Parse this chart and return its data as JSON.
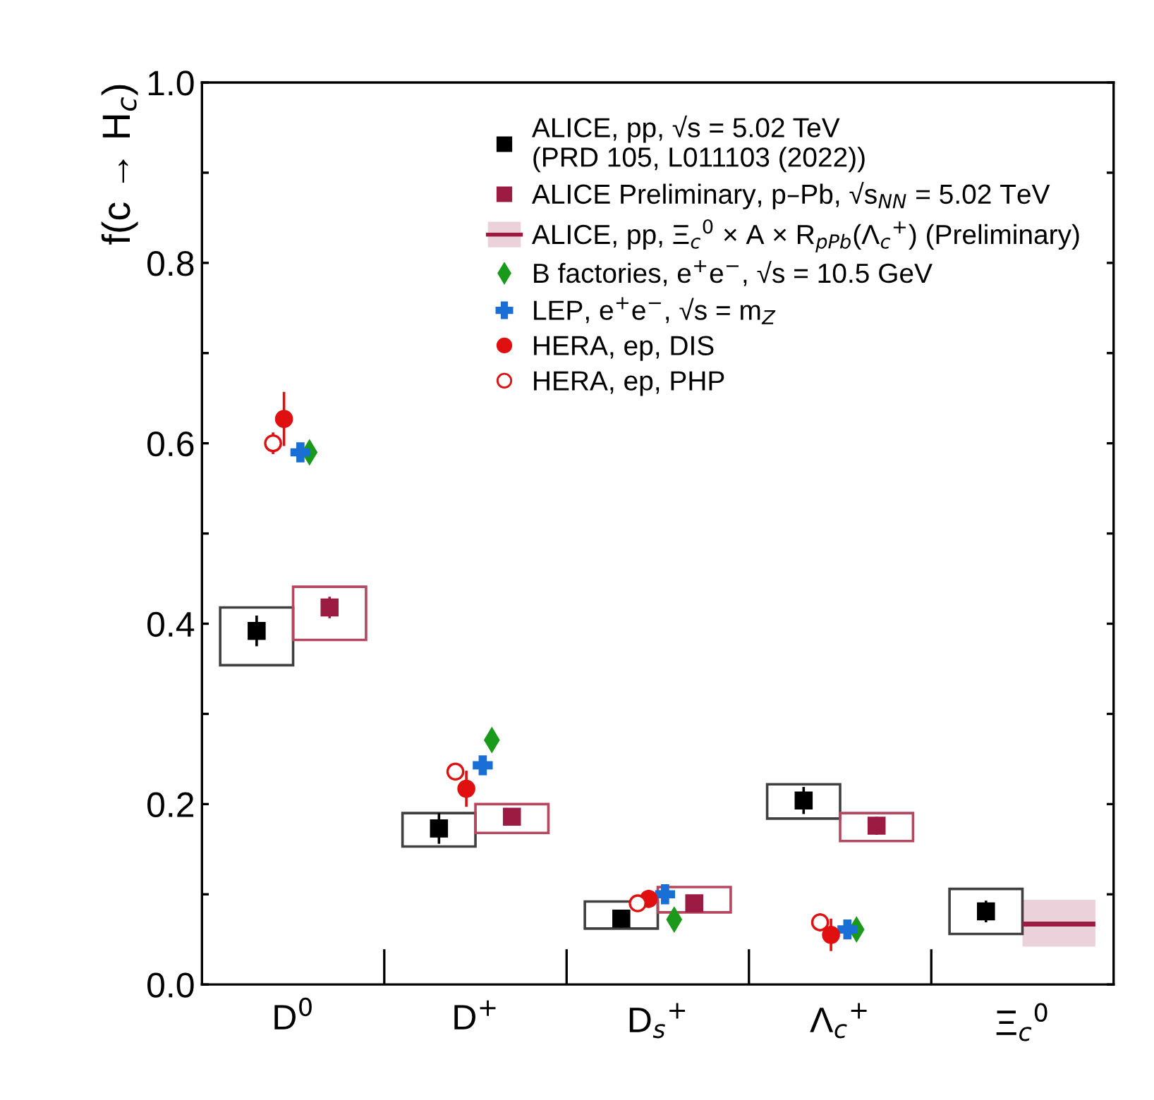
{
  "chart_data": {
    "type": "scatter",
    "ylabel": "f(c → H$_{c}$)",
    "categories": [
      "D$^{0}$",
      "D$^{+}$",
      "D$_{s}$$^{+}$",
      "Λ$_{c}$$^{+}$",
      "Ξ$_{c}$$^{0}$"
    ],
    "ylim": [
      0,
      1.0
    ],
    "yticks": [
      {
        "value": 0,
        "label": "0.0"
      },
      {
        "value": 0.1,
        "label": null
      },
      {
        "value": 0.2,
        "label": "0.2"
      },
      {
        "value": 0.3,
        "label": null
      },
      {
        "value": 0.4,
        "label": "0.4"
      },
      {
        "value": 0.5,
        "label": null
      },
      {
        "value": 0.6,
        "label": "0.6"
      },
      {
        "value": 0.7,
        "label": null
      },
      {
        "value": 0.8,
        "label": "0.8"
      },
      {
        "value": 0.9,
        "label": null
      },
      {
        "value": 1.0,
        "label": "1.0"
      }
    ],
    "grid": false,
    "legend": "top right",
    "series": [
      {
        "type": "bar",
        "color": "#404040",
        "base": [
          0.354,
          0.153,
          0.062,
          0.184,
          0.056
        ],
        "values": [
          0.064,
          0.037,
          0.03,
          0.038,
          0.05
        ]
      },
      {
        "name": "ALICE, pp, √s = 5.02 TeV\n(PRD 105, L011103 (2022))",
        "color": "#000000",
        "marker": "square",
        "values": [
          0.392,
          0.173,
          0.073,
          0.204,
          0.081
        ],
        "errors": [
          0.017,
          0.017,
          0.01,
          0.015,
          0.012
        ]
      },
      {
        "type": "bar",
        "color": "#b5475f",
        "base": [
          0.382,
          0.168,
          0.08,
          0.159,
          null
        ],
        "values": [
          0.059,
          0.032,
          0.028,
          0.031,
          null
        ]
      },
      {
        "name": "ALICE Preliminary, p–Pb, √s$_{NN}$ = 5.02 TeV",
        "color": "#9b1b42",
        "marker": "square",
        "values": [
          0.418,
          0.186,
          0.09,
          0.176,
          null
        ],
        "errors": [
          0.012,
          0.008,
          0.006,
          0.01,
          null
        ]
      },
      {
        "type": "box",
        "name": "ALICE, pp, Ξ$_{c}$$^{0}$ × A × R$_{pPb}$(Λ$_{c}$$^{+}$) (Preliminary)",
        "color": "#9b1b42",
        "boxes": [
          null,
          null,
          null,
          null,
          {
            "low": 0.042,
            "q1": 0.042,
            "median": 0.067,
            "q3": 0.094,
            "high": 0.094
          }
        ]
      },
      {
        "name": "B factories, e$^{+}$e$^{−}$, √s = 10.5 GeV",
        "color": "#1a9a1a",
        "marker": "diamond",
        "values": [
          0.59,
          0.271,
          0.072,
          0.061,
          null
        ],
        "errors": [
          0.008,
          null,
          null,
          null,
          null
        ]
      },
      {
        "name": "LEP, e$^{+}$e$^{−}$, √s = m$_{Z}$",
        "color": "#1a6fd6",
        "marker": "cross",
        "values": [
          0.59,
          0.243,
          0.1,
          0.061,
          null
        ],
        "errors": [
          0.008,
          null,
          null,
          null,
          null
        ]
      },
      {
        "name": "HERA, ep, DIS",
        "color": "#e01010",
        "marker": "circle",
        "values": [
          0.627,
          0.217,
          0.095,
          0.055,
          null
        ],
        "errors": [
          0.03,
          0.02,
          0.01,
          0.018,
          null
        ]
      },
      {
        "name": "HERA, ep, PHP",
        "color": "#e01010",
        "marker": "open circle",
        "values": [
          0.6,
          0.236,
          0.09,
          0.069,
          null
        ],
        "errors": [
          0.012,
          0.006,
          0.006,
          0.01,
          null
        ]
      }
    ]
  }
}
